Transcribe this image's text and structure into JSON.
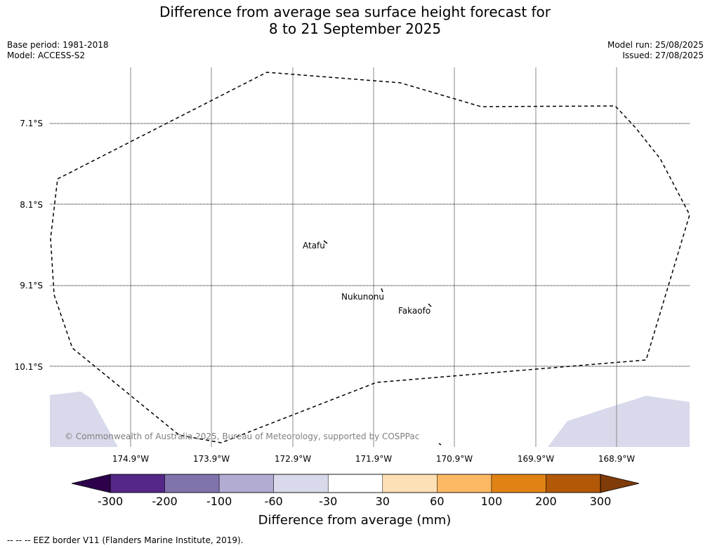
{
  "title": {
    "line1": "Difference from average sea surface height forecast for",
    "line2": "8 to 21 September 2025"
  },
  "meta": {
    "base_period": "Base period: 1981-2018",
    "model": "Model: ACCESS-S2",
    "model_run": "Model run: 25/08/2025",
    "issued": "Issued: 27/08/2025"
  },
  "map": {
    "latitude_labels": [
      "7.1°S",
      "8.1°S",
      "9.1°S",
      "10.1°S"
    ],
    "longitude_labels": [
      "174.9°W",
      "173.9°W",
      "172.9°W",
      "171.9°W",
      "170.9°W",
      "169.9°W",
      "168.9°W"
    ],
    "places": [
      "Atafu",
      "Nukunonu",
      "Fakaofo"
    ],
    "copyright": "© Commonwealth of Australia 2025, Bureau of Meteorology, supported by COSPPac",
    "land_color": "#000000",
    "border_color": "#000000",
    "anomaly_shading": "-60 to -30 band in south-west and south-east corners"
  },
  "colorbar": {
    "title": "Difference from average (mm)",
    "tick_labels": [
      "-300",
      "-200",
      "-100",
      "-60",
      "-30",
      "30",
      "60",
      "100",
      "200",
      "300"
    ],
    "colors": [
      "#2d004b",
      "#542788",
      "#8073ac",
      "#b2abd2",
      "#d8daeb",
      "#ffffff",
      "#fee0b6",
      "#fdb863",
      "#e08214",
      "#b35806",
      "#7f3b08"
    ]
  },
  "footnote": "-- -- -- EEZ border V11 (Flanders Marine Institute, 2019)."
}
